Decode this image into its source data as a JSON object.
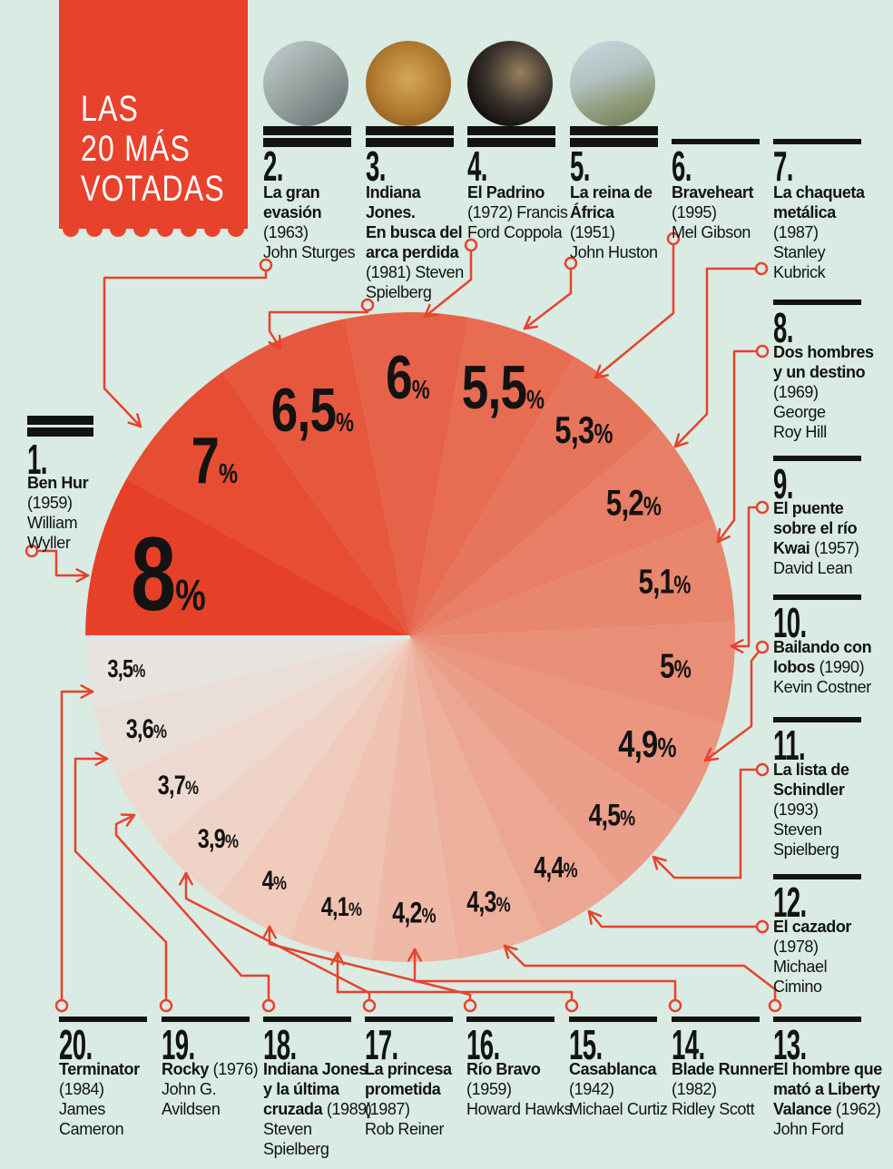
{
  "meta": {
    "title_lines": [
      "LAS",
      "20 MÁS",
      "VOTADAS"
    ]
  },
  "colors": {
    "background": "#d9ebe3",
    "accent_red": "#e8422c",
    "ink": "#131313",
    "pie_colors": [
      "#e74029",
      "#e64d33",
      "#e6583e",
      "#e66248",
      "#e76c52",
      "#e7755c",
      "#e87e65",
      "#e8866e",
      "#e98e77",
      "#ea9680",
      "#eb9e89",
      "#eca793",
      "#edb09d",
      "#eeb9a7",
      "#efc2b1",
      "#f0cbbc",
      "#efd3c6",
      "#edd9d0",
      "#eadfd8",
      "#e7e4df"
    ]
  },
  "chart_data": {
    "type": "pie",
    "title": "LAS 20 MÁS VOTADAS",
    "unit": "%",
    "layout_note": "starts at 9 o'clock, proceeds clockwise, ranks 1-20",
    "slices": [
      {
        "rank": 1,
        "label": "Ben Hur",
        "year": "1959",
        "director": "William Wyller",
        "value": 8,
        "display": "8",
        "value_label": "8%"
      },
      {
        "rank": 2,
        "label": "La gran evasión",
        "year": "1963",
        "director": "John Sturges",
        "value": 7,
        "display": "7",
        "value_label": "7%"
      },
      {
        "rank": 3,
        "label": "Indiana Jones. En busca del arca perdida",
        "year": "1981",
        "director": "Steven Spielberg",
        "value": 6.5,
        "display": "6,5",
        "value_label": "6,5%"
      },
      {
        "rank": 4,
        "label": "El Padrino",
        "year": "1972",
        "director": "Francis Ford Coppola",
        "value": 6,
        "display": "6",
        "value_label": "6%"
      },
      {
        "rank": 5,
        "label": "La reina de África",
        "year": "1951",
        "director": "John Huston",
        "value": 5.5,
        "display": "5,5",
        "value_label": "5,5%"
      },
      {
        "rank": 6,
        "label": "Braveheart",
        "year": "1995",
        "director": "Mel Gibson",
        "value": 5.3,
        "display": "5,3",
        "value_label": "5,3%"
      },
      {
        "rank": 7,
        "label": "La chaqueta metálica",
        "year": "1987",
        "director": "Stanley Kubrick",
        "value": 5.2,
        "display": "5,2",
        "value_label": "5,2%"
      },
      {
        "rank": 8,
        "label": "Dos hombres y un destino",
        "year": "1969",
        "director": "George Roy Hill",
        "value": 5.1,
        "display": "5,1",
        "value_label": "5,1%"
      },
      {
        "rank": 9,
        "label": "El puente sobre el río Kwai",
        "year": "1957",
        "director": "David Lean",
        "value": 5,
        "display": "5",
        "value_label": "5%"
      },
      {
        "rank": 10,
        "label": "Bailando con lobos",
        "year": "1990",
        "director": "Kevin Costner",
        "value": 4.9,
        "display": "4,9",
        "value_label": "4,9%"
      },
      {
        "rank": 11,
        "label": "La lista de Schindler",
        "year": "1993",
        "director": "Steven Spielberg",
        "value": 4.5,
        "display": "4,5",
        "value_label": "4,5%"
      },
      {
        "rank": 12,
        "label": "El cazador",
        "year": "1978",
        "director": "Michael Cimino",
        "value": 4.4,
        "display": "4,4",
        "value_label": "4,4%"
      },
      {
        "rank": 13,
        "label": "El hombre que mató a Liberty Valance",
        "year": "1962",
        "director": "John Ford",
        "value": 4.3,
        "display": "4,3",
        "value_label": "4,3%"
      },
      {
        "rank": 14,
        "label": "Blade Runner",
        "year": "1982",
        "director": "Ridley Scott",
        "value": 4.2,
        "display": "4,2",
        "value_label": "4,2%"
      },
      {
        "rank": 15,
        "label": "Casablanca",
        "year": "1942",
        "director": "Michael Curtiz",
        "value": 4.1,
        "display": "4,1",
        "value_label": "4,1%"
      },
      {
        "rank": 16,
        "label": "Río Bravo",
        "year": "1959",
        "director": "Howard Hawks",
        "value": 4,
        "display": "4",
        "value_label": "4%"
      },
      {
        "rank": 17,
        "label": "La princesa prometida",
        "year": "1987",
        "director": "Rob Reiner",
        "value": 3.9,
        "display": "3,9",
        "value_label": "3,9%"
      },
      {
        "rank": 18,
        "label": "Indiana Jones y la última cruzada",
        "year": "1989",
        "director": "Steven Spielberg",
        "value": 3.7,
        "display": "3,7",
        "value_label": "3,7%"
      },
      {
        "rank": 19,
        "label": "Rocky",
        "year": "1976",
        "director": "John G. Avildsen",
        "value": 3.6,
        "display": "3,6",
        "value_label": "3,6%"
      },
      {
        "rank": 20,
        "label": "Terminator",
        "year": "1984",
        "director": "James Cameron",
        "value": 3.5,
        "display": "3,5",
        "value_label": "3,5%"
      }
    ]
  },
  "entries": [
    {
      "rank": 1,
      "num": "1.",
      "lines": [
        [
          [
            "Ben Hur",
            1
          ]
        ],
        [
          [
            "(1959)",
            0
          ]
        ],
        [
          [
            "William",
            0
          ]
        ],
        [
          [
            "Wyller",
            0
          ]
        ]
      ]
    },
    {
      "rank": 2,
      "num": "2.",
      "photo": "photo-la-gran-evasion-motorcycle",
      "lines": [
        [
          [
            "La gran",
            1
          ]
        ],
        [
          [
            "evasión",
            1
          ]
        ],
        [
          [
            "(1963)",
            0
          ]
        ],
        [
          [
            "John Sturges",
            0
          ]
        ]
      ]
    },
    {
      "rank": 3,
      "num": "3.",
      "photo": "photo-indiana-jones-poster",
      "lines": [
        [
          [
            "Indiana",
            1
          ]
        ],
        [
          [
            "Jones.",
            1
          ]
        ],
        [
          [
            "En busca del",
            1
          ]
        ],
        [
          [
            "arca perdida",
            1
          ]
        ],
        [
          [
            "(1981) Steven",
            0
          ]
        ],
        [
          [
            "Spielberg",
            0
          ]
        ]
      ]
    },
    {
      "rank": 4,
      "num": "4.",
      "photo": "photo-el-padrino-brando",
      "lines": [
        [
          [
            "El Padrino",
            1
          ]
        ],
        [
          [
            "(1972) Francis",
            0
          ]
        ],
        [
          [
            "Ford Coppola",
            0
          ]
        ]
      ]
    },
    {
      "rank": 5,
      "num": "5.",
      "photo": "photo-la-reina-de-africa-still",
      "lines": [
        [
          [
            "La reina de",
            1
          ]
        ],
        [
          [
            "África",
            1
          ]
        ],
        [
          [
            "(1951)",
            0
          ]
        ],
        [
          [
            "John Huston",
            0
          ]
        ]
      ]
    },
    {
      "rank": 6,
      "num": "6.",
      "lines": [
        [
          [
            "Braveheart",
            1
          ]
        ],
        [
          [
            "(1995)",
            0
          ]
        ],
        [
          [
            "Mel Gibson",
            0
          ]
        ]
      ]
    },
    {
      "rank": 7,
      "num": "7.",
      "lines": [
        [
          [
            "La chaqueta",
            1
          ]
        ],
        [
          [
            "metálica",
            1
          ]
        ],
        [
          [
            "(1987)",
            0
          ]
        ],
        [
          [
            "Stanley",
            0
          ]
        ],
        [
          [
            "Kubrick",
            0
          ]
        ]
      ]
    },
    {
      "rank": 8,
      "num": "8.",
      "lines": [
        [
          [
            "Dos hombres",
            1
          ]
        ],
        [
          [
            "y un destino",
            1
          ]
        ],
        [
          [
            "(1969)",
            0
          ]
        ],
        [
          [
            "George",
            0
          ]
        ],
        [
          [
            "Roy Hill",
            0
          ]
        ]
      ]
    },
    {
      "rank": 9,
      "num": "9.",
      "lines": [
        [
          [
            "El puente",
            1
          ]
        ],
        [
          [
            "sobre el río",
            1
          ]
        ],
        [
          [
            "Kwai ",
            1
          ],
          [
            "(1957)",
            0
          ]
        ],
        [
          [
            "David Lean",
            0
          ]
        ]
      ]
    },
    {
      "rank": 10,
      "num": "10.",
      "lines": [
        [
          [
            "Bailando con",
            1
          ]
        ],
        [
          [
            "lobos ",
            1
          ],
          [
            "(1990)",
            0
          ]
        ],
        [
          [
            "Kevin Costner",
            0
          ]
        ]
      ]
    },
    {
      "rank": 11,
      "num": "11.",
      "lines": [
        [
          [
            "La lista de",
            1
          ]
        ],
        [
          [
            "Schindler",
            1
          ]
        ],
        [
          [
            "(1993)",
            0
          ]
        ],
        [
          [
            "Steven",
            0
          ]
        ],
        [
          [
            "Spielberg",
            0
          ]
        ]
      ]
    },
    {
      "rank": 12,
      "num": "12.",
      "lines": [
        [
          [
            "El cazador",
            1
          ]
        ],
        [
          [
            "(1978)",
            0
          ]
        ],
        [
          [
            "Michael",
            0
          ]
        ],
        [
          [
            "Cimino",
            0
          ]
        ]
      ]
    },
    {
      "rank": 13,
      "num": "13.",
      "lines": [
        [
          [
            "El hombre que",
            1
          ]
        ],
        [
          [
            "mató a Liberty",
            1
          ]
        ],
        [
          [
            "Valance ",
            1
          ],
          [
            "(1962)",
            0
          ]
        ],
        [
          [
            "John Ford",
            0
          ]
        ]
      ]
    },
    {
      "rank": 14,
      "num": "14.",
      "lines": [
        [
          [
            "Blade Runner",
            1
          ]
        ],
        [
          [
            "(1982)",
            0
          ]
        ],
        [
          [
            "Ridley Scott",
            0
          ]
        ]
      ]
    },
    {
      "rank": 15,
      "num": "15.",
      "lines": [
        [
          [
            "Casablanca",
            1
          ]
        ],
        [
          [
            "(1942)",
            0
          ]
        ],
        [
          [
            "Michael Curtiz",
            0
          ]
        ]
      ]
    },
    {
      "rank": 16,
      "num": "16.",
      "lines": [
        [
          [
            "Río Bravo",
            1
          ]
        ],
        [
          [
            "(1959)",
            0
          ]
        ],
        [
          [
            "Howard Hawks",
            0
          ]
        ]
      ]
    },
    {
      "rank": 17,
      "num": "17.",
      "lines": [
        [
          [
            "La princesa",
            1
          ]
        ],
        [
          [
            "prometida",
            1
          ]
        ],
        [
          [
            "(1987)",
            0
          ]
        ],
        [
          [
            "Rob Reiner",
            0
          ]
        ]
      ]
    },
    {
      "rank": 18,
      "num": "18.",
      "lines": [
        [
          [
            "Indiana Jones",
            1
          ]
        ],
        [
          [
            "y la última",
            1
          ]
        ],
        [
          [
            "cruzada ",
            1
          ],
          [
            "(1989)",
            0
          ]
        ],
        [
          [
            "Steven",
            0
          ]
        ],
        [
          [
            "Spielberg",
            0
          ]
        ]
      ]
    },
    {
      "rank": 19,
      "num": "19.",
      "lines": [
        [
          [
            "Rocky ",
            1
          ],
          [
            "(1976)",
            0
          ]
        ],
        [
          [
            "John G.",
            0
          ]
        ],
        [
          [
            "Avildsen",
            0
          ]
        ]
      ]
    },
    {
      "rank": 20,
      "num": "20.",
      "lines": [
        [
          [
            "Terminator",
            1
          ]
        ],
        [
          [
            "(1984)",
            0
          ]
        ],
        [
          [
            "James",
            0
          ]
        ],
        [
          [
            "Cameron",
            0
          ]
        ]
      ]
    }
  ]
}
